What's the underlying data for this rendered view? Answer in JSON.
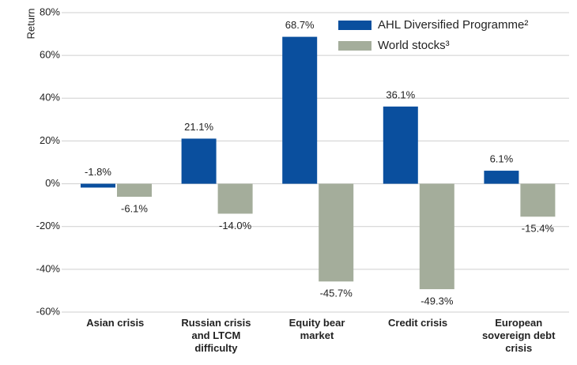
{
  "chart_data": {
    "type": "bar",
    "y_label": "Return",
    "categories": [
      "Asian crisis",
      "Russian crisis and LTCM difficulty",
      "Equity bear market",
      "Credit crisis",
      "European sovereign debt crisis"
    ],
    "series": [
      {
        "name": "AHL Diversified Programme²",
        "color": "#0a4f9e",
        "values": [
          -1.8,
          21.1,
          68.7,
          36.1,
          6.1
        ],
        "value_labels": [
          "-1.8%",
          "21.1%",
          "68.7%",
          "36.1%",
          "6.1%"
        ]
      },
      {
        "name": "World stocks³",
        "color": "#a4ad9b",
        "values": [
          -6.1,
          -14.0,
          -45.7,
          -49.3,
          -15.4
        ],
        "value_labels": [
          "-6.1%",
          "-14.0%",
          "-45.7%",
          "-49.3%",
          "-15.4%"
        ]
      }
    ],
    "ylim": [
      -60,
      80
    ],
    "yticks": [
      {
        "value": -60,
        "label": "-60%"
      },
      {
        "value": -40,
        "label": "-40%"
      },
      {
        "value": -20,
        "label": "-20%"
      },
      {
        "value": 0,
        "label": "0%"
      },
      {
        "value": 20,
        "label": "20%"
      },
      {
        "value": 40,
        "label": "40%"
      },
      {
        "value": 60,
        "label": "60%"
      },
      {
        "value": 80,
        "label": "80%"
      }
    ],
    "grid": true
  }
}
